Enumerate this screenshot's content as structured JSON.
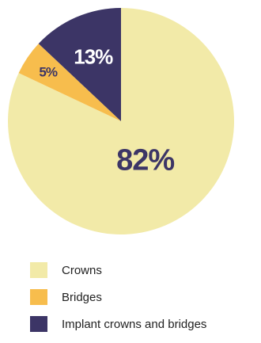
{
  "chart_data": {
    "type": "pie",
    "title": "",
    "slices": [
      {
        "label": "Crowns",
        "value": 82,
        "display": "82%",
        "color": "#f2eaa8"
      },
      {
        "label": "Bridges",
        "value": 5,
        "display": "5%",
        "color": "#f7bd4d"
      },
      {
        "label": "Implant crowns and bridges",
        "value": 13,
        "display": "13%",
        "color": "#3c3566"
      }
    ],
    "label_colors": {
      "82%": "#3c3566",
      "5%": "#3c3566",
      "13%": "#ffffff"
    },
    "legend_position": "bottom-left"
  }
}
